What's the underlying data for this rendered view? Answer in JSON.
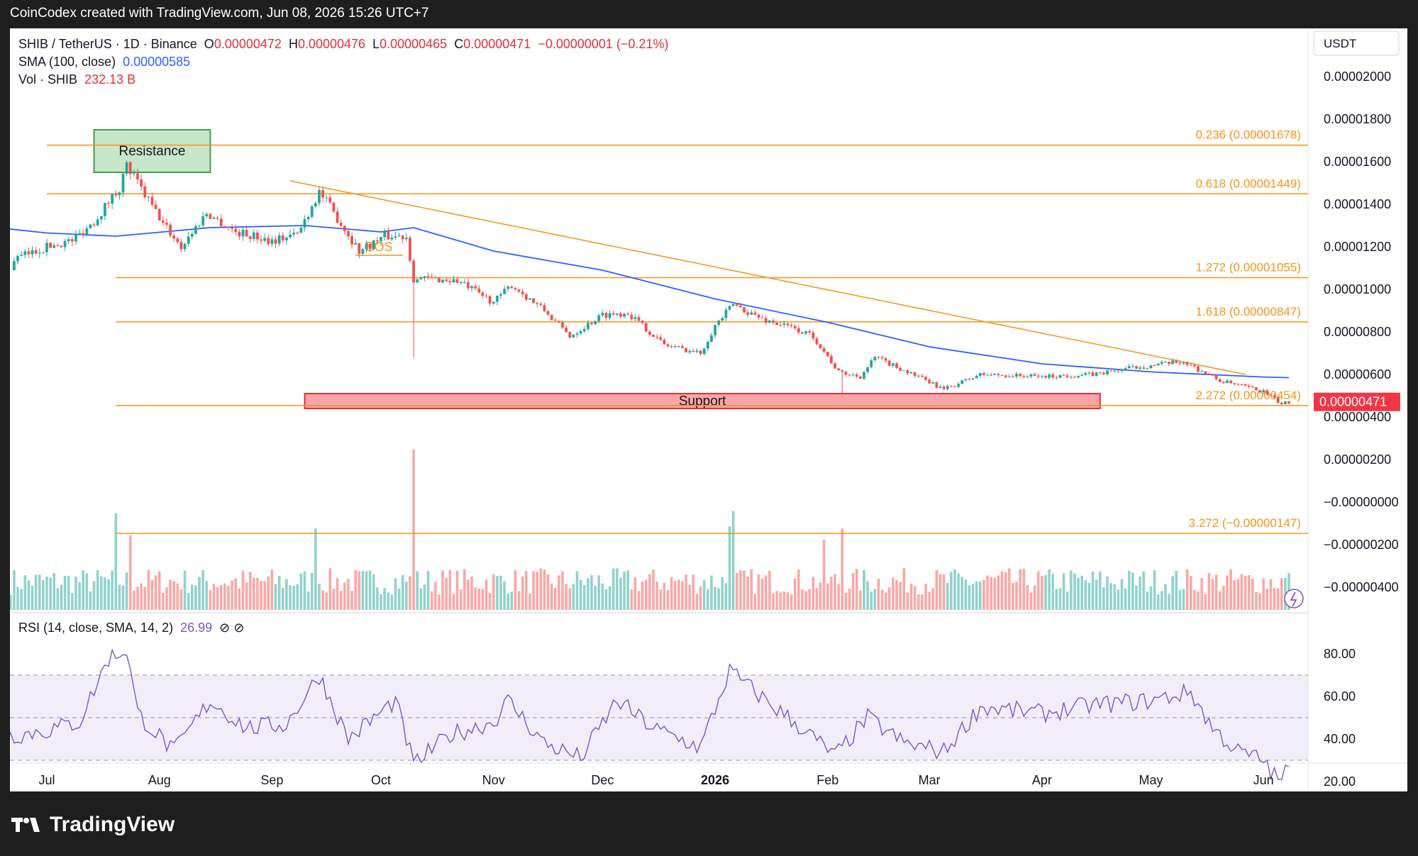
{
  "header": {
    "credit": "CoinCodex created with TradingView.com, Jun 08, 2026 15:26 UTC+7"
  },
  "legend": {
    "symbol": "SHIB / TetherUS · 1D · Binance",
    "o_label": "O",
    "o_value": "0.00000472",
    "h_label": "H",
    "h_value": "0.00000476",
    "l_label": "L",
    "l_value": "0.00000465",
    "c_label": "C",
    "c_value": "0.00000471",
    "change": "−0.00000001 (−0.21%)",
    "sma_label": "SMA (100, close)",
    "sma_value": "0.00000585",
    "vol_label": "Vol · SHIB",
    "vol_value": "232.13 B"
  },
  "rsi_legend": {
    "label": "RSI (14, close, SMA, 14, 2)",
    "value": "26.99",
    "icons": "⊘ ⊘"
  },
  "currency": "USDT",
  "last_price_badge": "0.00000471",
  "brand": "TradingView",
  "chart_data": {
    "type": "candlestick",
    "price_axis": {
      "ticks": [
        2e-05,
        1.8e-05,
        1.6e-05,
        1.4e-05,
        1.2e-05,
        1e-05,
        8e-06,
        6e-06,
        4e-06,
        2e-06,
        0.0,
        -2e-06,
        -4e-06
      ],
      "tick_labels": [
        "0.00002000",
        "0.00001800",
        "0.00001600",
        "0.00001400",
        "0.00001200",
        "0.00001000",
        "0.00000800",
        "0.00000600",
        "0.00000400",
        "0.00000200",
        "−0.00000000",
        "−0.00000200",
        "−0.00000400"
      ]
    },
    "rsi_axis": {
      "ticks": [
        80,
        60,
        40,
        20
      ],
      "tick_labels": [
        "80.00",
        "60.00",
        "40.00",
        "20.00"
      ],
      "upper_band": 70,
      "middle": 50,
      "lower_band": 30
    },
    "time_axis": {
      "labels": [
        "Jul",
        "Aug",
        "Sep",
        "Oct",
        "Nov",
        "Dec",
        "2026",
        "Feb",
        "Mar",
        "Apr",
        "May",
        "Jun"
      ],
      "dates": [
        "2025-07-01",
        "2025-08-01",
        "2025-09-01",
        "2025-10-01",
        "2025-11-01",
        "2025-12-01",
        "2026-01-01",
        "2026-02-01",
        "2026-03-01",
        "2026-04-01",
        "2026-05-01",
        "2026-06-01"
      ],
      "bold_label": "2026"
    },
    "fib_levels": [
      {
        "label": "0.236 (0.00001678)",
        "price": 1.678e-05,
        "start": "2025-07-01"
      },
      {
        "label": "0.618 (0.00001449)",
        "price": 1.449e-05,
        "start": "2025-07-01"
      },
      {
        "label": "1.272 (0.00001055)",
        "price": 1.055e-05,
        "start": "2025-07-20"
      },
      {
        "label": "1.618 (0.00000847)",
        "price": 8.47e-06,
        "start": "2025-07-20"
      },
      {
        "label": "2.272 (0.00000454)",
        "price": 4.54e-06,
        "start": "2025-07-20"
      },
      {
        "label": "3.272 (−0.00000147)",
        "price": -1.47e-06,
        "start": "2025-07-20"
      }
    ],
    "zones": {
      "resistance": {
        "label": "Resistance",
        "start": "2025-07-14",
        "end": "2025-08-15",
        "top": 1.75e-05,
        "bottom": 1.55e-05
      },
      "support": {
        "label": "Support",
        "start": "2025-09-10",
        "end": "2026-04-17",
        "top": 5.1e-06,
        "bottom": 4.4e-06
      }
    },
    "trendline": {
      "start_date": "2025-09-06",
      "start_price": 1.51e-05,
      "end_date": "2026-05-27",
      "end_price": 6e-06
    },
    "bos": {
      "label": "BOS",
      "start": "2025-09-24",
      "end": "2025-10-07",
      "price": 1.16e-05
    },
    "sma_path": [
      [
        "2025-06-01",
        1.32e-05
      ],
      [
        "2025-07-01",
        1.265e-05
      ],
      [
        "2025-07-20",
        1.25e-05
      ],
      [
        "2025-08-15",
        1.29e-05
      ],
      [
        "2025-09-10",
        1.3e-05
      ],
      [
        "2025-10-01",
        1.27e-05
      ],
      [
        "2025-10-10",
        1.29e-05
      ],
      [
        "2025-11-01",
        1.18e-05
      ],
      [
        "2025-12-01",
        1.09e-05
      ],
      [
        "2026-01-01",
        9.55e-06
      ],
      [
        "2026-02-01",
        8.45e-06
      ],
      [
        "2026-03-01",
        7.3e-06
      ],
      [
        "2026-04-01",
        6.5e-06
      ],
      [
        "2026-05-01",
        6.12e-06
      ],
      [
        "2026-06-01",
        5.88e-06
      ],
      [
        "2026-06-08",
        5.85e-06
      ]
    ],
    "price_path": [
      [
        "2025-06-01",
        1.09e-05
      ],
      [
        "2025-06-10",
        1.18e-05
      ],
      [
        "2025-06-20",
        1.13e-05
      ],
      [
        "2025-07-01",
        1.2e-05
      ],
      [
        "2025-07-08",
        1.23e-05
      ],
      [
        "2025-07-14",
        1.32e-05
      ],
      [
        "2025-07-21",
        1.48e-05
      ],
      [
        "2025-07-23",
        1.58e-05
      ],
      [
        "2025-07-27",
        1.47e-05
      ],
      [
        "2025-08-02",
        1.31e-05
      ],
      [
        "2025-08-07",
        1.2e-05
      ],
      [
        "2025-08-14",
        1.36e-05
      ],
      [
        "2025-08-22",
        1.27e-05
      ],
      [
        "2025-09-01",
        1.23e-05
      ],
      [
        "2025-09-08",
        1.26e-05
      ],
      [
        "2025-09-14",
        1.46e-05
      ],
      [
        "2025-09-20",
        1.31e-05
      ],
      [
        "2025-09-25",
        1.18e-05
      ],
      [
        "2025-10-02",
        1.25e-05
      ],
      [
        "2025-10-08",
        1.25e-05
      ],
      [
        "2025-10-10",
        1.05e-05
      ],
      [
        "2025-10-14",
        1.05e-05
      ],
      [
        "2025-10-22",
        1.04e-05
      ],
      [
        "2025-11-01",
        9.4e-06
      ],
      [
        "2025-11-06",
        1.02e-05
      ],
      [
        "2025-11-15",
        9e-06
      ],
      [
        "2025-11-22",
        7.8e-06
      ],
      [
        "2025-12-01",
        8.8e-06
      ],
      [
        "2025-12-08",
        8.9e-06
      ],
      [
        "2025-12-18",
        7.4e-06
      ],
      [
        "2025-12-28",
        7e-06
      ],
      [
        "2026-01-01",
        8.3e-06
      ],
      [
        "2026-01-06",
        9.3e-06
      ],
      [
        "2026-01-14",
        8.6e-06
      ],
      [
        "2026-01-22",
        8.2e-06
      ],
      [
        "2026-01-28",
        7.8e-06
      ],
      [
        "2026-02-04",
        6.1e-06
      ],
      [
        "2026-02-10",
        5.9e-06
      ],
      [
        "2026-02-14",
        6.8e-06
      ],
      [
        "2026-02-22",
        6.2e-06
      ],
      [
        "2026-03-05",
        5.3e-06
      ],
      [
        "2026-03-15",
        6e-06
      ],
      [
        "2026-04-01",
        5.9e-06
      ],
      [
        "2026-04-15",
        6e-06
      ],
      [
        "2026-04-25",
        6.3e-06
      ],
      [
        "2026-05-10",
        6.6e-06
      ],
      [
        "2026-05-20",
        5.7e-06
      ],
      [
        "2026-06-01",
        5.2e-06
      ],
      [
        "2026-06-06",
        4.6e-06
      ],
      [
        "2026-06-08",
        4.71e-06
      ]
    ],
    "rsi_path": [
      [
        "2025-06-01",
        28
      ],
      [
        "2025-06-15",
        40
      ],
      [
        "2025-07-01",
        44
      ],
      [
        "2025-07-10",
        48
      ],
      [
        "2025-07-18",
        78
      ],
      [
        "2025-07-23",
        82
      ],
      [
        "2025-07-26",
        52
      ],
      [
        "2025-08-05",
        34
      ],
      [
        "2025-08-15",
        58
      ],
      [
        "2025-08-25",
        45
      ],
      [
        "2025-09-05",
        47
      ],
      [
        "2025-09-14",
        70
      ],
      [
        "2025-09-22",
        40
      ],
      [
        "2025-10-05",
        58
      ],
      [
        "2025-10-10",
        28
      ],
      [
        "2025-10-20",
        42
      ],
      [
        "2025-11-01",
        48
      ],
      [
        "2025-11-05",
        58
      ],
      [
        "2025-11-15",
        38
      ],
      [
        "2025-11-25",
        31
      ],
      [
        "2025-12-05",
        58
      ],
      [
        "2025-12-15",
        45
      ],
      [
        "2025-12-28",
        36
      ],
      [
        "2026-01-05",
        72
      ],
      [
        "2026-01-15",
        58
      ],
      [
        "2026-01-25",
        45
      ],
      [
        "2026-02-03",
        32
      ],
      [
        "2026-02-12",
        50
      ],
      [
        "2026-02-22",
        38
      ],
      [
        "2026-03-05",
        34
      ],
      [
        "2026-03-15",
        55
      ],
      [
        "2026-04-01",
        52
      ],
      [
        "2026-04-15",
        56
      ],
      [
        "2026-05-01",
        58
      ],
      [
        "2026-05-12",
        62
      ],
      [
        "2026-05-18",
        45
      ],
      [
        "2026-05-25",
        34
      ],
      [
        "2026-06-01",
        30
      ],
      [
        "2026-06-05",
        20
      ],
      [
        "2026-06-08",
        27
      ]
    ],
    "volume_spikes": [
      [
        "2025-07-20",
        0.44
      ],
      [
        "2025-07-24",
        0.34
      ],
      [
        "2025-09-13",
        0.37
      ],
      [
        "2025-10-10",
        0.73
      ],
      [
        "2026-01-06",
        0.45
      ],
      [
        "2026-01-05",
        0.38
      ],
      [
        "2026-02-05",
        0.37
      ],
      [
        "2026-01-31",
        0.32
      ]
    ],
    "colors": {
      "up": "#26a69a",
      "down": "#ef5350",
      "sma": "#2962ff",
      "fib": "#f7931a",
      "rsi": "#7e57c2",
      "support_fill": "#f8a5aa",
      "support_border": "#e0313a",
      "resistance_fill": "#c8e6c9",
      "resistance_border": "#43a047"
    }
  }
}
